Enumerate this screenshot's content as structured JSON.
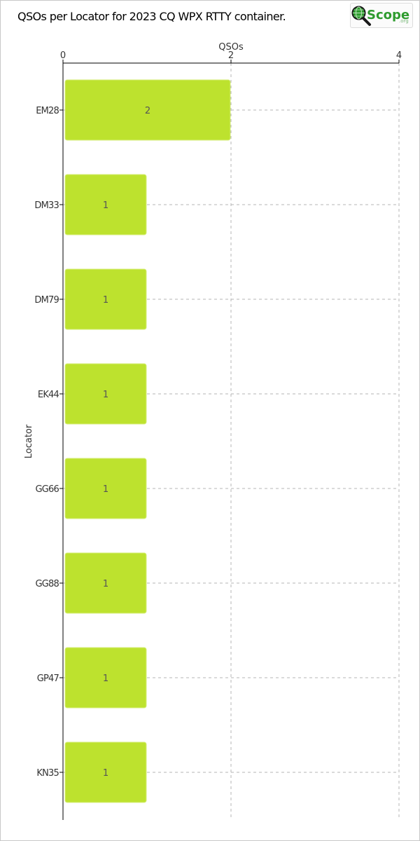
{
  "title": "QSOs per Locator for 2023 CQ WPX RTTY container.",
  "logo": {
    "text_main": "Scope",
    "text_suffix": ".org",
    "icon": "magnifier-globe-icon",
    "colors": {
      "green": "#2e9b2e",
      "dark": "#1a1a1a"
    }
  },
  "chart_data": {
    "type": "bar",
    "orientation": "horizontal",
    "categories": [
      "EM28",
      "DM33",
      "DM79",
      "EK44",
      "GG66",
      "GG88",
      "GP47",
      "KN35"
    ],
    "values": [
      2,
      1,
      1,
      1,
      1,
      1,
      1,
      1
    ],
    "data_labels": [
      "2",
      "1",
      "1",
      "1",
      "1",
      "1",
      "1",
      "1"
    ],
    "xlabel": "QSOs",
    "ylabel": "Locator",
    "xlim": [
      0,
      4
    ],
    "x_ticks": [
      0,
      2,
      4
    ],
    "x_axis_position": "top",
    "grid": true,
    "bar_color": "#bde22e",
    "bar_stroke": "#d6ee7a"
  }
}
